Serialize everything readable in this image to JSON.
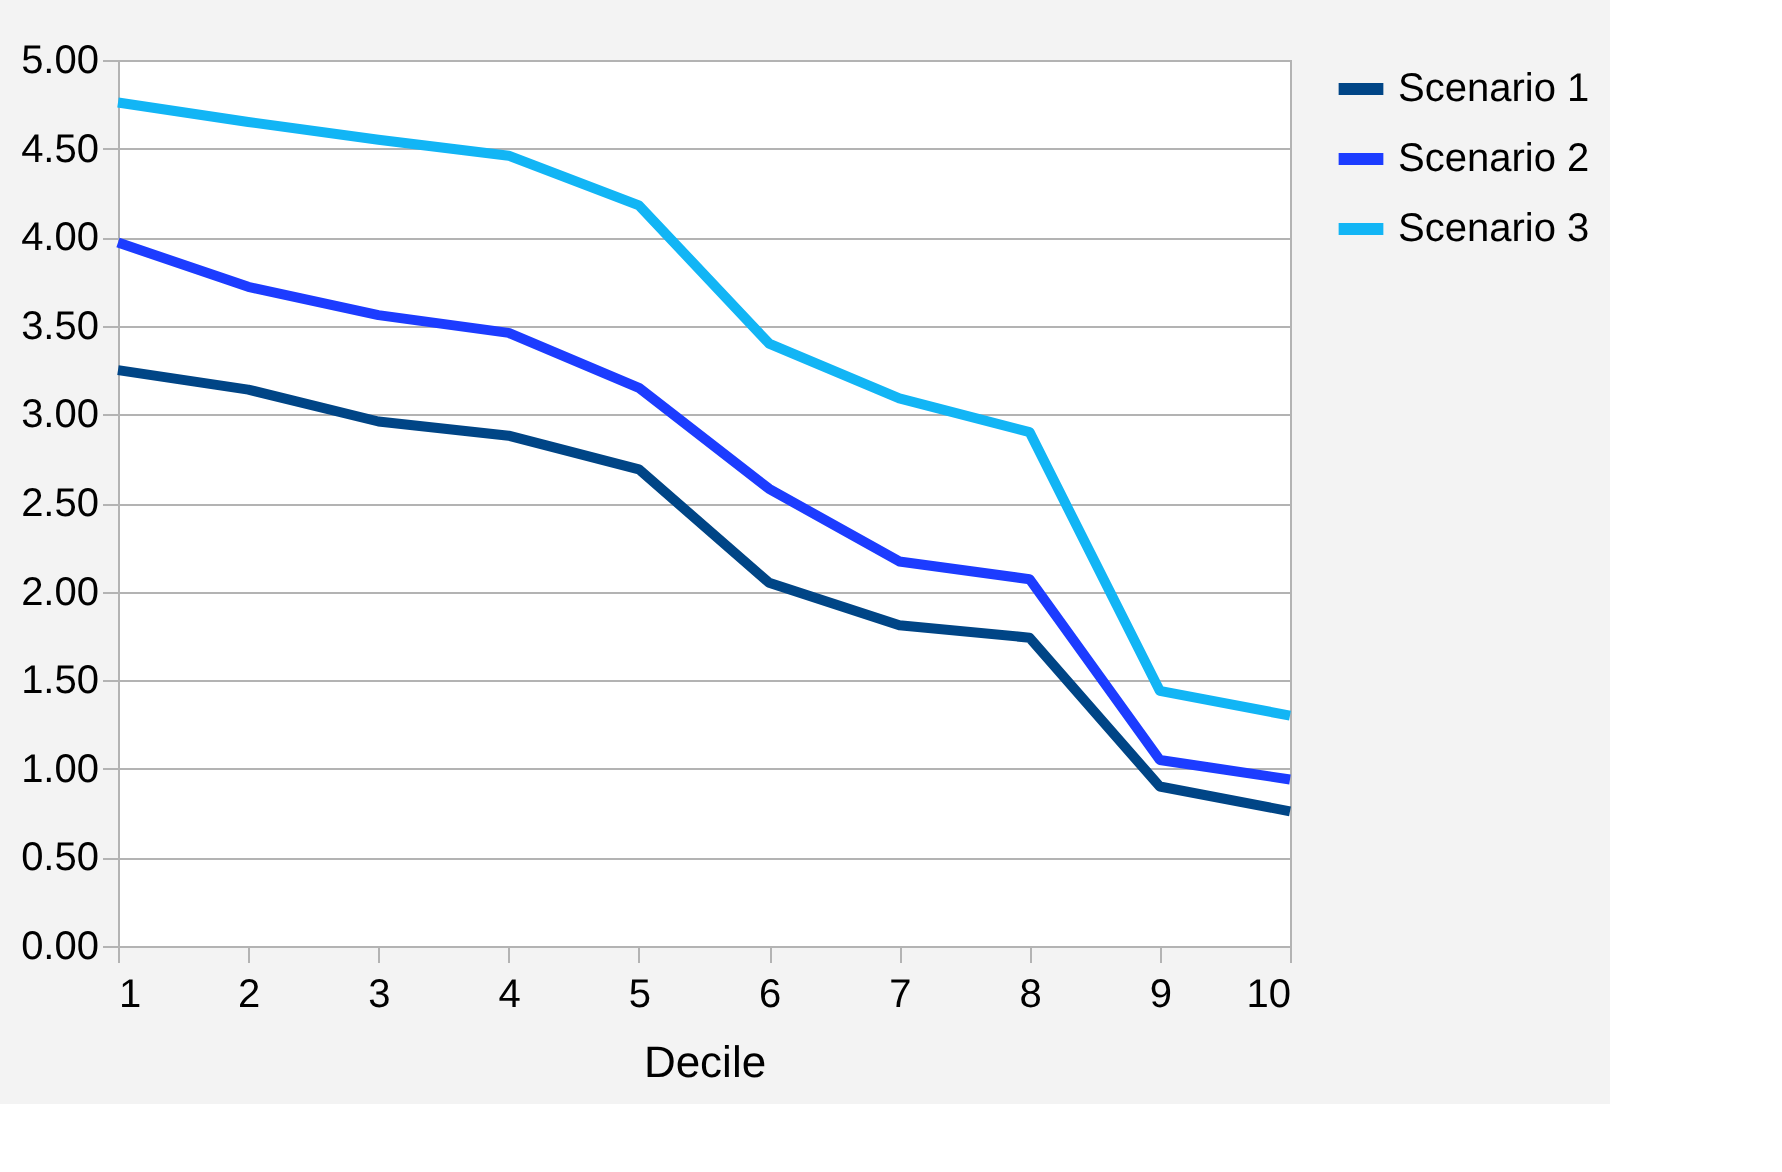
{
  "chart_data": {
    "type": "line",
    "xlabel": "Decile",
    "categories": [
      "1",
      "2",
      "3",
      "4",
      "5",
      "6",
      "7",
      "8",
      "9",
      "10"
    ],
    "series": [
      {
        "name": "Scenario 1",
        "color": "#004586",
        "values": [
          3.25,
          3.14,
          2.96,
          2.88,
          2.69,
          2.05,
          1.81,
          1.74,
          0.9,
          0.76
        ]
      },
      {
        "name": "Scenario 2",
        "color": "#1c3cff",
        "values": [
          3.97,
          3.72,
          3.56,
          3.46,
          3.15,
          2.58,
          2.17,
          2.07,
          1.05,
          0.94
        ]
      },
      {
        "name": "Scenario 3",
        "color": "#12b5f5",
        "values": [
          4.76,
          4.65,
          4.55,
          4.46,
          4.18,
          3.4,
          3.09,
          2.9,
          1.44,
          1.3
        ]
      }
    ],
    "ylim": [
      0,
      5
    ],
    "yticks": [
      {
        "value": 0,
        "label": "0.00"
      },
      {
        "value": 0.5,
        "label": "0.50"
      },
      {
        "value": 1,
        "label": "1.00"
      },
      {
        "value": 1.5,
        "label": "1.50"
      },
      {
        "value": 2,
        "label": "2.00"
      },
      {
        "value": 2.5,
        "label": "2.50"
      },
      {
        "value": 3,
        "label": "3.00"
      },
      {
        "value": 3.5,
        "label": "3.50"
      },
      {
        "value": 4,
        "label": "4.00"
      },
      {
        "value": 4.5,
        "label": "4.50"
      },
      {
        "value": 5,
        "label": "5.00"
      }
    ],
    "grid": "y",
    "legend": "right",
    "marker": "none",
    "line_style": "solid"
  }
}
